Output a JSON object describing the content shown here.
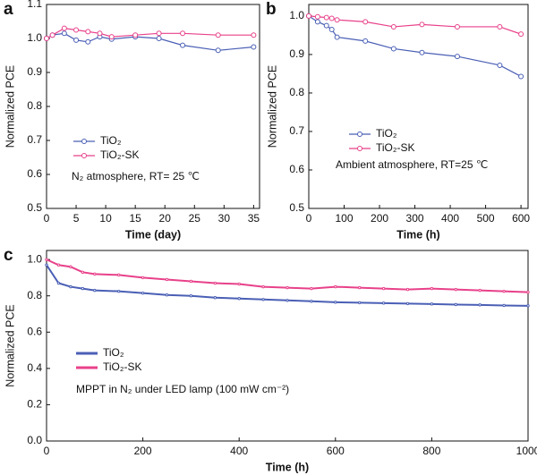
{
  "chart_data": [
    {
      "type": "line",
      "label": "a",
      "x_label": "Time (day)",
      "y_label": "Normalized PCE",
      "annotation": "N₂ atmosphere, RT= 25 ℃",
      "x": [
        0,
        1,
        3,
        5,
        7,
        9,
        11,
        15,
        19,
        23,
        29,
        35
      ],
      "series": [
        {
          "name": "TiO₂",
          "color": "#4a5fb5",
          "values": [
            1.0,
            1.01,
            1.015,
            0.995,
            0.99,
            1.005,
            0.998,
            1.005,
            1.0,
            0.98,
            0.965,
            0.975
          ]
        },
        {
          "name": "TiO₂-SK",
          "color": "#e8418a",
          "values": [
            1.0,
            1.01,
            1.03,
            1.025,
            1.02,
            1.015,
            1.005,
            1.01,
            1.015,
            1.015,
            1.01,
            1.01
          ]
        }
      ],
      "xlim": [
        0,
        36
      ],
      "xticks": [
        0,
        5,
        10,
        15,
        20,
        25,
        30,
        35
      ],
      "ylim": [
        0.5,
        1.1
      ],
      "yticks": [
        0.5,
        0.6,
        0.7,
        0.8,
        0.9,
        {
          "value": 1,
          "label": "1.0"
        },
        1.1
      ]
    },
    {
      "type": "line",
      "label": "b",
      "x_label": "Time (h)",
      "y_label": "Normalized PCE",
      "annotation": "Ambient atmosphere, RT=25 ℃",
      "x": [
        0,
        25,
        50,
        65,
        80,
        160,
        240,
        320,
        420,
        540,
        600
      ],
      "series": [
        {
          "name": "TiO₂",
          "color": "#4a5fb5",
          "values": [
            1.0,
            0.985,
            0.975,
            0.965,
            0.945,
            0.935,
            0.915,
            0.905,
            0.895,
            0.872,
            0.843
          ]
        },
        {
          "name": "TiO₂-SK",
          "color": "#e8418a",
          "values": [
            1.0,
            0.998,
            0.996,
            0.994,
            0.99,
            0.985,
            0.972,
            0.978,
            0.972,
            0.972,
            0.953
          ]
        }
      ],
      "xlim": [
        0,
        620
      ],
      "xticks": [
        0,
        100,
        200,
        300,
        400,
        500,
        600
      ],
      "ylim": [
        0.5,
        1.03
      ],
      "yticks": [
        0.5,
        0.6,
        0.7,
        0.8,
        0.9,
        {
          "value": 1,
          "label": "1.0"
        }
      ]
    },
    {
      "type": "line",
      "label": "c",
      "x_label": "Time (h)",
      "y_label": "Normalized PCE",
      "annotation": "MPPT in N₂ under LED lamp (100 mW cm⁻²)",
      "x": [
        0,
        25,
        50,
        75,
        100,
        150,
        200,
        250,
        300,
        350,
        400,
        450,
        500,
        550,
        600,
        650,
        700,
        750,
        800,
        850,
        900,
        950,
        1000
      ],
      "series": [
        {
          "name": "TiO₂",
          "color": "#4a5fb5",
          "values": [
            0.97,
            0.87,
            0.85,
            0.84,
            0.83,
            0.825,
            0.815,
            0.805,
            0.8,
            0.79,
            0.785,
            0.78,
            0.775,
            0.77,
            0.765,
            0.762,
            0.76,
            0.757,
            0.755,
            0.752,
            0.75,
            0.747,
            0.745
          ]
        },
        {
          "name": "TiO₂-SK",
          "color": "#e8418a",
          "values": [
            1.0,
            0.97,
            0.96,
            0.93,
            0.92,
            0.915,
            0.9,
            0.89,
            0.88,
            0.87,
            0.865,
            0.85,
            0.845,
            0.84,
            0.85,
            0.845,
            0.84,
            0.835,
            0.84,
            0.835,
            0.83,
            0.825,
            0.82
          ]
        }
      ],
      "xlim": [
        0,
        1000
      ],
      "xticks": [
        0,
        200,
        400,
        600,
        800,
        1000
      ],
      "ylim": [
        0,
        1.05
      ],
      "yticks": [
        {
          "value": 0,
          "label": "0.0"
        },
        0.2,
        0.4,
        0.6,
        0.8,
        {
          "value": 1,
          "label": "1.0"
        }
      ]
    }
  ]
}
